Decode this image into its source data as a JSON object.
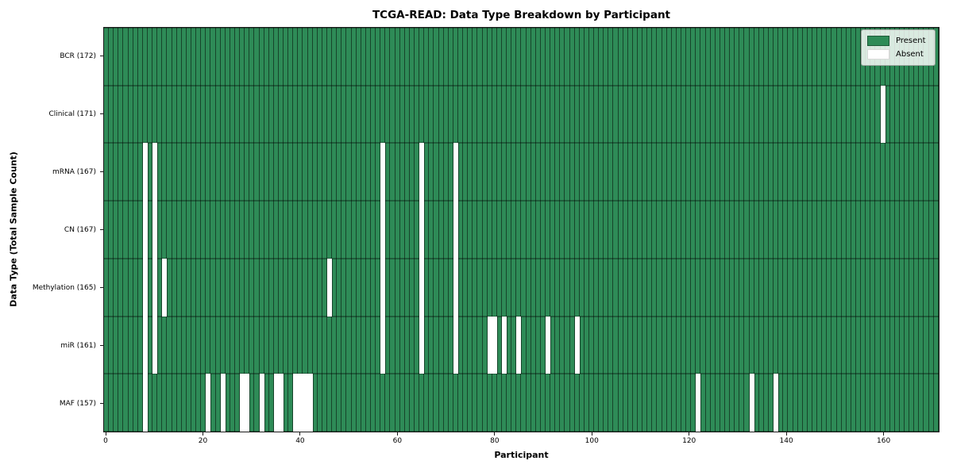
{
  "title": "TCGA-READ: Data Type Breakdown by Participant",
  "axes": {
    "xlabel": "Participant",
    "ylabel": "Data Type (Total Sample Count)"
  },
  "legend": {
    "present_label": "Present",
    "absent_label": "Absent"
  },
  "colors": {
    "present": "#2e8b57",
    "absent": "#ffffff",
    "cell_edge_vertical": "rgba(0,0,0,0.5)",
    "cell_edge_horizontal": "rgba(0,0,0,0.32)",
    "frame": "#1a1a1a"
  },
  "chart_data": {
    "type": "heatmap",
    "title": "TCGA-READ: Data Type Breakdown by Participant",
    "xlabel": "Participant",
    "ylabel": "Data Type (Total Sample Count)",
    "x_range": [
      0,
      172
    ],
    "x_ticks": [
      0,
      20,
      40,
      60,
      80,
      100,
      120,
      140,
      160
    ],
    "total_participants": 172,
    "legend_entries": [
      "Present",
      "Absent"
    ],
    "legend_position": "upper right",
    "grid": false,
    "rows": [
      {
        "data_type": "BCR",
        "label": "BCR (172)",
        "total": 172,
        "absent_participants": []
      },
      {
        "data_type": "Clinical",
        "label": "Clinical (171)",
        "total": 171,
        "absent_participants": [
          160
        ]
      },
      {
        "data_type": "mRNA",
        "label": "mRNA (167)",
        "total": 167,
        "absent_participants": [
          8,
          10,
          57,
          65,
          72
        ]
      },
      {
        "data_type": "CN",
        "label": "CN (167)",
        "total": 167,
        "absent_participants": [
          8,
          10,
          57,
          65,
          72
        ]
      },
      {
        "data_type": "Methylation",
        "label": "Methylation (165)",
        "total": 165,
        "absent_participants": [
          8,
          10,
          12,
          46,
          57,
          65,
          72
        ]
      },
      {
        "data_type": "miR",
        "label": "miR (161)",
        "total": 161,
        "absent_participants": [
          8,
          10,
          57,
          65,
          72,
          79,
          80,
          82,
          85,
          91,
          97
        ]
      },
      {
        "data_type": "MAF",
        "label": "MAF (157)",
        "total": 157,
        "absent_participants": [
          8,
          21,
          24,
          28,
          29,
          32,
          35,
          36,
          39,
          40,
          41,
          42,
          122,
          133,
          138
        ]
      }
    ]
  }
}
